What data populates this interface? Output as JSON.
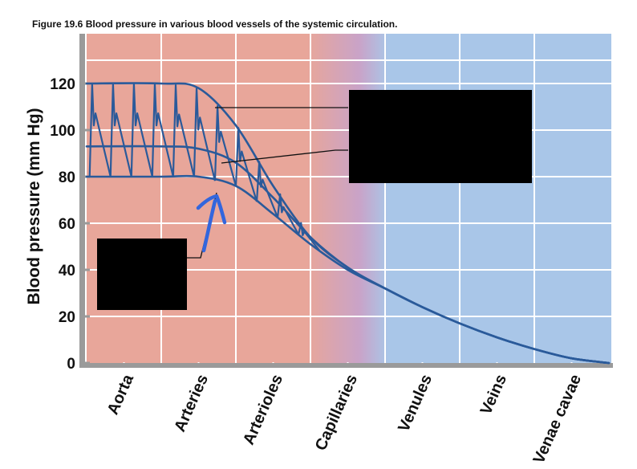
{
  "figure_title": "Figure 19.6  Blood pressure in various blood vessels of the systemic circulation.",
  "chart_data": {
    "type": "line",
    "ylabel": "Blood pressure  (mm Hg)",
    "xlabel": "",
    "ylim": [
      0,
      130
    ],
    "yticks": [
      0,
      20,
      40,
      60,
      80,
      100,
      120
    ],
    "categories": [
      "Aorta",
      "Arteries",
      "Arterioles",
      "Capillaries",
      "Venules",
      "Veins",
      "Venae cavae"
    ],
    "grid": true,
    "series": [
      {
        "x": [
          0,
          1,
          1.5,
          2,
          2.5,
          3,
          3.5,
          4,
          4.5,
          5,
          5.5,
          6,
          6.5,
          7
        ],
        "values": [
          120,
          120,
          118,
          102,
          76,
          54,
          41,
          32,
          24,
          17,
          11,
          6,
          2,
          0
        ]
      },
      {
        "x": [
          0,
          1,
          1.5,
          2,
          2.5,
          3,
          3.5,
          4,
          4.5,
          5,
          5.5,
          6,
          6.5,
          7
        ],
        "values": [
          93,
          93,
          92,
          86,
          71,
          54,
          41,
          32,
          24,
          17,
          11,
          6,
          2,
          0
        ]
      },
      {
        "x": [
          0,
          1,
          1.5,
          2,
          2.5,
          3,
          3.5,
          4,
          4.5,
          5,
          5.5,
          6,
          6.5,
          7
        ],
        "values": [
          80,
          80,
          80,
          76,
          64,
          51,
          40,
          32,
          24,
          17,
          11,
          6,
          2,
          0
        ]
      }
    ],
    "region_colors": {
      "arterial": "#e8a69a",
      "venous": "#a9c6e8",
      "transition": "#c9a3c8"
    },
    "line_color": "#2a5a9a",
    "pen_arrow_color": "#3366dd"
  }
}
